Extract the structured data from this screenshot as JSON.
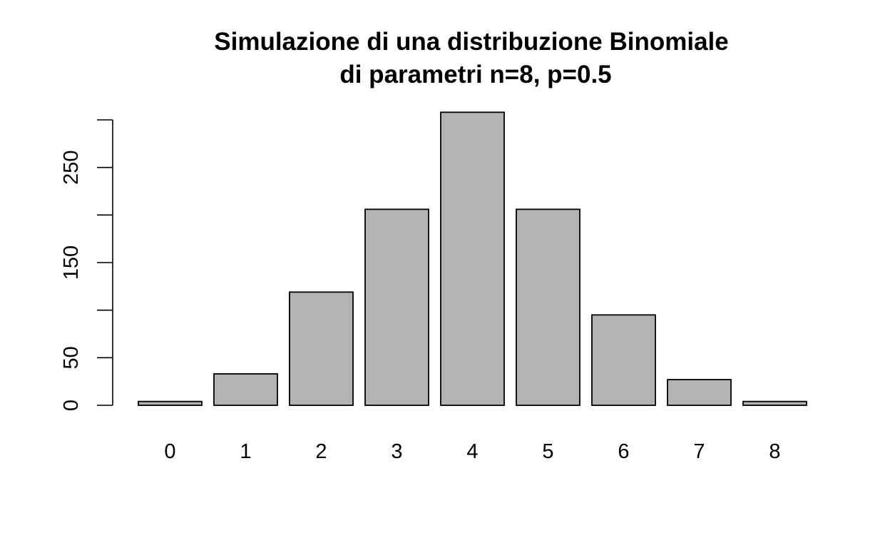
{
  "chart_data": {
    "type": "bar",
    "title_lines": [
      "Simulazione di una distribuzione Binomiale",
      "di parametri n=8, p=0.5"
    ],
    "categories": [
      "0",
      "1",
      "2",
      "3",
      "4",
      "5",
      "6",
      "7",
      "8"
    ],
    "values": [
      4,
      33,
      119,
      206,
      308,
      206,
      95,
      27,
      4
    ],
    "ylim": [
      0,
      300
    ],
    "y_ticks": [
      0,
      50,
      100,
      150,
      200,
      250,
      300
    ],
    "y_tick_labels_shown": [
      "0",
      "50",
      "150",
      "250"
    ],
    "xlabel": "",
    "ylabel": "",
    "grid": false,
    "legend": "none",
    "colors": {
      "bar_fill": "#b3b3b3",
      "bar_stroke": "#000000",
      "background": "#ffffff"
    }
  }
}
